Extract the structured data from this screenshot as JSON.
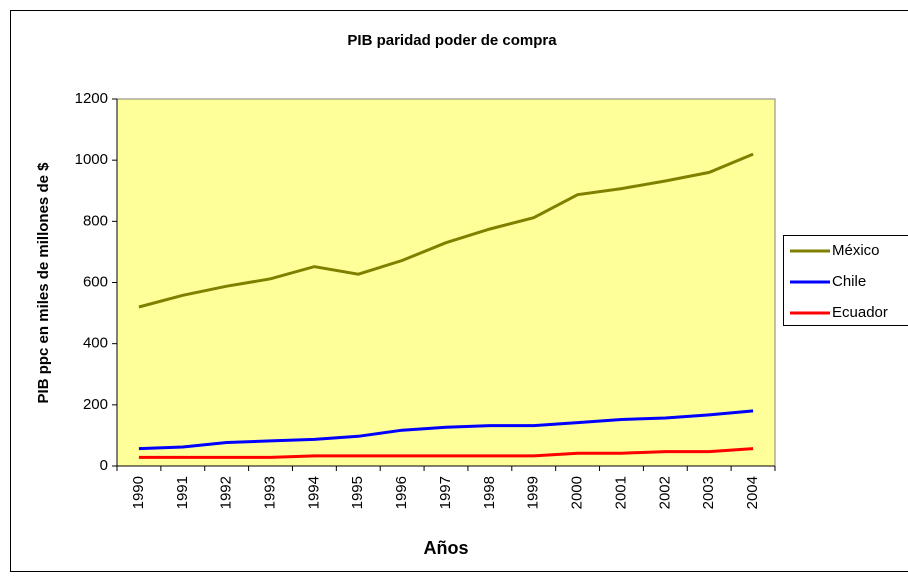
{
  "chart_data": {
    "type": "line",
    "title": "PIB paridad poder de compra",
    "y_label": "PIB ppc en miles de millones de $",
    "x_label": "Años",
    "categories": [
      "1990",
      "1991",
      "1992",
      "1993",
      "1994",
      "1995",
      "1996",
      "1997",
      "1998",
      "1999",
      "2000",
      "2001",
      "2002",
      "2003",
      "2004"
    ],
    "series": [
      {
        "name": "México",
        "color": "#808000",
        "values": [
          520,
          558,
          588,
          612,
          652,
          627,
          672,
          730,
          775,
          812,
          887,
          907,
          932,
          960,
          1020
        ]
      },
      {
        "name": "Chile",
        "color": "#0000ff",
        "values": [
          57,
          62,
          77,
          82,
          87,
          97,
          117,
          127,
          132,
          132,
          142,
          152,
          157,
          167,
          180
        ]
      },
      {
        "name": "Ecuador",
        "color": "#ff0000",
        "values": [
          28,
          28,
          28,
          28,
          33,
          33,
          33,
          33,
          33,
          33,
          42,
          42,
          47,
          47,
          57
        ]
      }
    ],
    "ylim": [
      0,
      1200
    ],
    "yticks": [
      0,
      200,
      400,
      600,
      800,
      1000,
      1200
    ],
    "plot_background": "#ffff99",
    "grid": false,
    "legend": "right"
  }
}
